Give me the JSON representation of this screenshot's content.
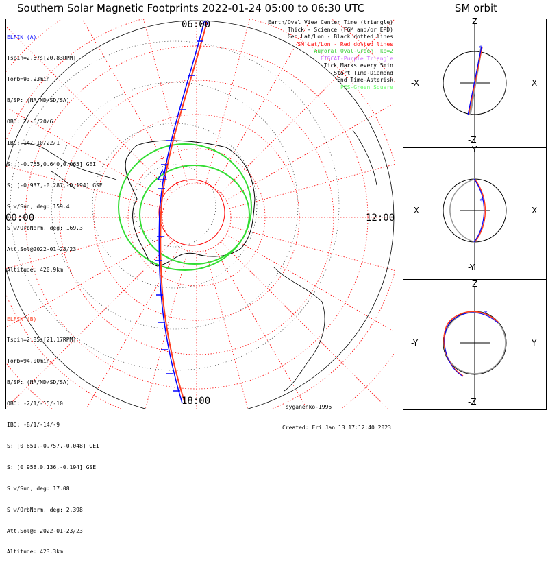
{
  "title": "Southern Solar Magnetic Footprints 2022-01-24 05:00 to 06:30 UTC",
  "sm_title": "SM orbit",
  "colors": {
    "elfin_a": "#0000ff",
    "elfin_b": "#ff3d1f",
    "auroral": "#33dd33",
    "sm_grid": "#ff0000",
    "geo_grid": "#000000"
  },
  "elfin_a": {
    "name": "ELFIN (A)",
    "lines": [
      "Tspin=2.87s[20.83RPM]",
      "Torb=93.93min",
      "B/SP: (NA/ND/SD/SA)",
      "OBO: 7/-6/20/6",
      "IBO: 14/-10/22/1",
      "S: [-0.765,0.640,0.065] GEI",
      "S: [-0.937,-0.287,-0.194] GSE",
      "S w/Sun, deg: 159.4",
      "S w/OrbNorm, deg: 169.3",
      "Att.Sol@2022-01-23/23",
      "Altitude: 420.9km"
    ]
  },
  "elfin_b": {
    "name": "ELFIN (B)",
    "lines": [
      "Tspin=2.85s[21.17RPM]",
      "Torb=94.00min",
      "B/SP: (NA/ND/SD/SA)",
      "OBO: -2/1/-15/-10",
      "IBO: -8/1/-14/-9",
      "S: [0.651,-0.757,-0.048] GEI",
      "S: [0.958,0.136,-0.194] GSE",
      "S w/Sun, deg: 17.08",
      "S w/OrbNorm, deg: 2.398",
      "Att.Sol@: 2022-01-23/23",
      "Altitude: 423.3km"
    ]
  },
  "legend": [
    {
      "text": "Earth/Oval View Center Time (triangle)",
      "color": "#000000"
    },
    {
      "text": "Thick - Science (FGM and/or EPD)",
      "color": "#000000"
    },
    {
      "text": "Geo Lat/Lon - Black dotted lines",
      "color": "#000000"
    },
    {
      "text": "SM Lat/Lon - Red dotted lines",
      "color": "#ff0000"
    },
    {
      "text": "Auroral Oval-Green, kp=2",
      "color": "#33cc33"
    },
    {
      "text": "EISCAT-Purple Triangle",
      "color": "#cc66ff"
    },
    {
      "text": "Tick Marks every 5min",
      "color": "#000000"
    },
    {
      "text": "Start Time-Diamond",
      "color": "#000000"
    },
    {
      "text": "End Time-Asterisk",
      "color": "#000000"
    },
    {
      "text": "PFS-Green Square",
      "color": "#66ff66"
    }
  ],
  "footer": {
    "model": "Tsyganenko-1996",
    "created": "Created: Fri Jan 13 17:12:40 2023"
  },
  "polar_labels": {
    "top": "06:00",
    "left": "00:00",
    "right": "12:00",
    "bottom": "18:00"
  },
  "sm_panels": [
    {
      "up": "Z",
      "down": "-Z",
      "left": "-X",
      "right": "X"
    },
    {
      "up": "Y",
      "down": "-Y",
      "left": "-X",
      "right": "X"
    },
    {
      "up": "Z",
      "down": "-Z",
      "left": "-Y",
      "right": "Y"
    }
  ]
}
